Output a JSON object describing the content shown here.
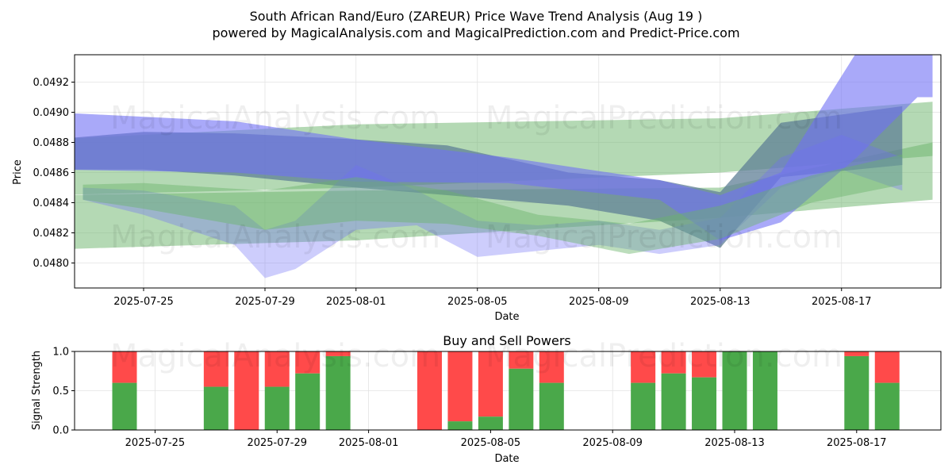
{
  "chart_data": [
    {
      "type": "area",
      "title": "South African Rand/Euro (ZAREUR) Price Wave Trend Analysis (Aug 19 )",
      "subtitle": "powered by MagicalAnalysis.com and MagicalPrediction.com and Predict-Price.com",
      "xlabel": "Date",
      "ylabel": "Price",
      "x_range": [
        "2025-07-22",
        "2025-08-20"
      ],
      "ylim": [
        0.04784,
        0.04937
      ],
      "x_ticks": [
        "2025-07-25",
        "2025-07-29",
        "2025-08-01",
        "2025-08-05",
        "2025-08-09",
        "2025-08-13",
        "2025-08-17"
      ],
      "y_ticks": [
        0.048,
        0.0482,
        0.0484,
        0.0486,
        0.0488,
        0.049,
        0.0492
      ],
      "grid": true,
      "colors": {
        "blue": "#6f6ff5",
        "green": "#6ab46a",
        "slate": "#5f7f96"
      },
      "bands": [
        {
          "name": "upper-green-band",
          "color": "green",
          "opacity": 0.5,
          "x": [
            "2025-07-22",
            "2025-08-01",
            "2025-08-13",
            "2025-08-20"
          ],
          "top": [
            0.04882,
            0.04892,
            0.04896,
            0.04907
          ],
          "bottom": [
            0.04845,
            0.0485,
            0.0486,
            0.04871
          ]
        },
        {
          "name": "lower-green-band",
          "color": "green",
          "opacity": 0.5,
          "x": [
            "2025-07-22",
            "2025-08-01",
            "2025-08-13",
            "2025-08-20"
          ],
          "top": [
            0.04845,
            0.04848,
            0.0485,
            0.0488
          ],
          "bottom": [
            0.04809,
            0.04815,
            0.0483,
            0.04842
          ]
        },
        {
          "name": "upper-slate-band",
          "color": "slate",
          "opacity": 0.75,
          "x": [
            "2025-07-22",
            "2025-07-25",
            "2025-07-28",
            "2025-08-01",
            "2025-08-04",
            "2025-08-08",
            "2025-08-11",
            "2025-08-13",
            "2025-08-15",
            "2025-08-19"
          ],
          "top": [
            0.04882,
            0.04887,
            0.04886,
            0.04882,
            0.04878,
            0.0486,
            0.04855,
            0.04847,
            0.04893,
            0.04904
          ],
          "bottom": [
            0.04862,
            0.04862,
            0.04858,
            0.0485,
            0.04845,
            0.04838,
            0.04828,
            0.0481,
            0.04857,
            0.04865
          ]
        },
        {
          "name": "blue-forecast-band",
          "color": "blue",
          "opacity": 0.6,
          "x": [
            "2025-07-22",
            "2025-07-28",
            "2025-08-01",
            "2025-08-06",
            "2025-08-11",
            "2025-08-13",
            "2025-08-15",
            "2025-08-17.5",
            "2025-08-19.5",
            "2025-08-20"
          ],
          "top": [
            0.049,
            0.04894,
            0.04882,
            0.0487,
            0.04855,
            0.04845,
            0.0486,
            0.0494,
            0.0494,
            0.0494
          ],
          "bottom": [
            0.04862,
            0.0486,
            0.04854,
            0.04853,
            0.04842,
            0.04815,
            0.04827,
            0.0487,
            0.0491,
            0.0491
          ]
        },
        {
          "name": "blue-wave-band",
          "color": "blue",
          "opacity": 0.35,
          "x": [
            "2025-07-23",
            "2025-07-25",
            "2025-07-28",
            "2025-07-29",
            "2025-07-30",
            "2025-08-01",
            "2025-08-03",
            "2025-08-05",
            "2025-08-07",
            "2025-08-09",
            "2025-08-11",
            "2025-08-13",
            "2025-08-15",
            "2025-08-17",
            "2025-08-19"
          ],
          "top": [
            0.0485,
            0.04848,
            0.04838,
            0.04822,
            0.04828,
            0.04865,
            0.04848,
            0.04828,
            0.04825,
            0.04828,
            0.04822,
            0.0483,
            0.0487,
            0.04885,
            0.0487
          ],
          "bottom": [
            0.04842,
            0.04832,
            0.04812,
            0.0479,
            0.04796,
            0.04822,
            0.04825,
            0.04804,
            0.04808,
            0.04812,
            0.04806,
            0.04812,
            0.0485,
            0.04862,
            0.04848
          ]
        },
        {
          "name": "green-wave-band",
          "color": "green",
          "opacity": 0.45,
          "x": [
            "2025-07-23",
            "2025-07-25",
            "2025-07-29",
            "2025-08-01",
            "2025-08-04",
            "2025-08-07",
            "2025-08-10",
            "2025-08-13",
            "2025-08-16",
            "2025-08-19"
          ],
          "top": [
            0.04852,
            0.04853,
            0.04848,
            0.04857,
            0.04848,
            0.04832,
            0.04826,
            0.04838,
            0.04858,
            0.04872
          ],
          "bottom": [
            0.04842,
            0.04836,
            0.04822,
            0.04828,
            0.04826,
            0.04818,
            0.04806,
            0.04816,
            0.0484,
            0.04852
          ]
        }
      ]
    },
    {
      "type": "bar",
      "title": "Buy and Sell Powers",
      "xlabel": "Date",
      "ylabel": "Signal Strength",
      "ylim": [
        0,
        1.0
      ],
      "y_ticks": [
        "0.0",
        "0.5",
        "1.0"
      ],
      "x_ticks": [
        "2025-07-25",
        "2025-07-29",
        "2025-08-01",
        "2025-08-05",
        "2025-08-09",
        "2025-08-13",
        "2025-08-17"
      ],
      "colors": {
        "buy": "#4aa84a",
        "sell": "#ff4a4a"
      },
      "bars": [
        {
          "date": "2025-07-24",
          "buy": 0.6
        },
        {
          "date": "2025-07-27",
          "buy": 0.55
        },
        {
          "date": "2025-07-28",
          "buy": 0.0
        },
        {
          "date": "2025-07-29",
          "buy": 0.55
        },
        {
          "date": "2025-07-30",
          "buy": 0.72
        },
        {
          "date": "2025-07-31",
          "buy": 0.94
        },
        {
          "date": "2025-08-03",
          "buy": 0.0
        },
        {
          "date": "2025-08-04",
          "buy": 0.11
        },
        {
          "date": "2025-08-05",
          "buy": 0.17
        },
        {
          "date": "2025-08-06",
          "buy": 0.78
        },
        {
          "date": "2025-08-07",
          "buy": 0.6
        },
        {
          "date": "2025-08-10",
          "buy": 0.6
        },
        {
          "date": "2025-08-11",
          "buy": 0.72
        },
        {
          "date": "2025-08-12",
          "buy": 0.67
        },
        {
          "date": "2025-08-13",
          "buy": 1.0
        },
        {
          "date": "2025-08-14",
          "buy": 1.0
        },
        {
          "date": "2025-08-17",
          "buy": 0.94
        },
        {
          "date": "2025-08-18",
          "buy": 0.6
        }
      ]
    }
  ],
  "watermarks": [
    "MagicalAnalysis.com",
    "MagicalPrediction.com"
  ]
}
